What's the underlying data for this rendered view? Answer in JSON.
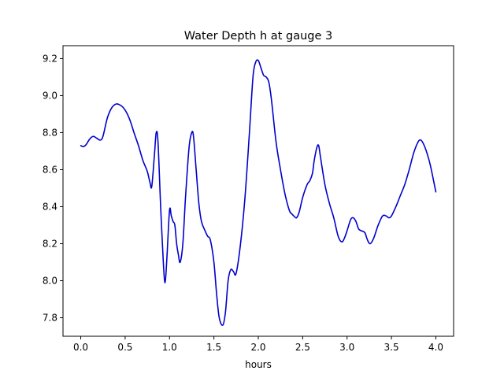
{
  "chart_data": {
    "type": "line",
    "title": "Water Depth h at gauge 3",
    "xlabel": "hours",
    "ylabel": "",
    "xlim": [
      -0.2,
      4.2
    ],
    "ylim": [
      7.7,
      9.27
    ],
    "xticks": [
      0.0,
      0.5,
      1.0,
      1.5,
      2.0,
      2.5,
      3.0,
      3.5,
      4.0
    ],
    "xtick_labels": [
      "0.0",
      "0.5",
      "1.0",
      "1.5",
      "2.0",
      "2.5",
      "3.0",
      "3.5",
      "4.0"
    ],
    "yticks": [
      7.8,
      8.0,
      8.2,
      8.4,
      8.6,
      8.8,
      9.0,
      9.2
    ],
    "ytick_labels": [
      "7.8",
      "8.0",
      "8.2",
      "8.4",
      "8.6",
      "8.8",
      "9.0",
      "9.2"
    ],
    "grid": false,
    "series": [
      {
        "name": "",
        "color": "#0000cc",
        "x": [
          0.0,
          0.03,
          0.06,
          0.1,
          0.14,
          0.18,
          0.22,
          0.25,
          0.3,
          0.35,
          0.4,
          0.44,
          0.48,
          0.52,
          0.56,
          0.6,
          0.65,
          0.7,
          0.75,
          0.78,
          0.8,
          0.83,
          0.85,
          0.87,
          0.9,
          0.93,
          0.95,
          0.97,
          1.0,
          1.02,
          1.04,
          1.06,
          1.08,
          1.1,
          1.12,
          1.15,
          1.18,
          1.22,
          1.25,
          1.27,
          1.3,
          1.33,
          1.36,
          1.4,
          1.43,
          1.46,
          1.5,
          1.53,
          1.56,
          1.6,
          1.63,
          1.66,
          1.69,
          1.72,
          1.75,
          1.8,
          1.85,
          1.9,
          1.94,
          1.97,
          2.0,
          2.03,
          2.06,
          2.09,
          2.12,
          2.15,
          2.2,
          2.25,
          2.3,
          2.35,
          2.38,
          2.4,
          2.43,
          2.46,
          2.5,
          2.55,
          2.58,
          2.61,
          2.63,
          2.66,
          2.68,
          2.7,
          2.75,
          2.8,
          2.85,
          2.9,
          2.94,
          2.97,
          3.0,
          3.04,
          3.07,
          3.1,
          3.13,
          3.16,
          3.2,
          3.23,
          3.26,
          3.3,
          3.35,
          3.4,
          3.44,
          3.47,
          3.5,
          3.55,
          3.6,
          3.65,
          3.7,
          3.75,
          3.8,
          3.83,
          3.86,
          3.9,
          3.94,
          4.0
        ],
        "y": [
          8.73,
          8.725,
          8.735,
          8.765,
          8.78,
          8.77,
          8.76,
          8.78,
          8.88,
          8.935,
          8.955,
          8.95,
          8.935,
          8.905,
          8.86,
          8.8,
          8.73,
          8.65,
          8.59,
          8.53,
          8.51,
          8.68,
          8.8,
          8.75,
          8.4,
          8.1,
          7.99,
          8.12,
          8.38,
          8.35,
          8.32,
          8.3,
          8.2,
          8.14,
          8.1,
          8.2,
          8.45,
          8.72,
          8.8,
          8.78,
          8.6,
          8.42,
          8.32,
          8.27,
          8.24,
          8.22,
          8.1,
          7.93,
          7.8,
          7.76,
          7.83,
          8.0,
          8.06,
          8.05,
          8.04,
          8.2,
          8.45,
          8.8,
          9.1,
          9.18,
          9.19,
          9.15,
          9.11,
          9.1,
          9.07,
          8.97,
          8.75,
          8.6,
          8.47,
          8.38,
          8.36,
          8.35,
          8.34,
          8.37,
          8.45,
          8.52,
          8.54,
          8.58,
          8.65,
          8.72,
          8.73,
          8.67,
          8.52,
          8.42,
          8.34,
          8.24,
          8.21,
          8.23,
          8.27,
          8.33,
          8.34,
          8.32,
          8.28,
          8.27,
          8.26,
          8.22,
          8.2,
          8.23,
          8.3,
          8.35,
          8.35,
          8.34,
          8.35,
          8.4,
          8.46,
          8.52,
          8.6,
          8.69,
          8.75,
          8.76,
          8.74,
          8.69,
          8.62,
          8.48
        ]
      }
    ]
  }
}
